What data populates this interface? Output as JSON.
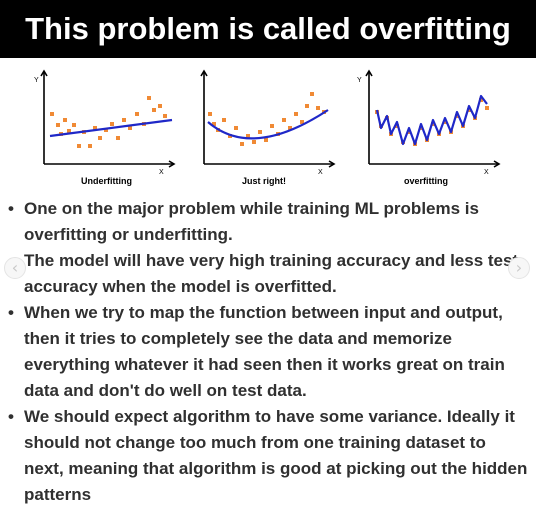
{
  "header": {
    "title": "This problem is called overfitting"
  },
  "figure": {
    "axis_y": "Y",
    "axis_x": "X",
    "panels": [
      {
        "caption": "Underfitting"
      },
      {
        "caption": "Just right!"
      },
      {
        "caption": "overfitting"
      }
    ],
    "colors": {
      "points": "#f08a35",
      "fit_line": "#1f28c8",
      "axes": "#000000"
    }
  },
  "bullets": [
    "One on the major problem while training ML problems is overfitting or underfitting.",
    "The model will have very high training accuracy and less test accuracy when the model is overfitted.",
    "When we try to map the function between input and output, then it tries to completely see the data and memorize everything whatever it had seen then it works great on train data and don't do well on test data.",
    "We should expect algorithm to have some variance. Ideally it should not change too much from one training dataset to next, meaning that algorithm is good at picking out the hidden patterns"
  ],
  "bullet_symbol": "•",
  "nav": {
    "prev_icon": "‹",
    "next_icon": "›"
  }
}
